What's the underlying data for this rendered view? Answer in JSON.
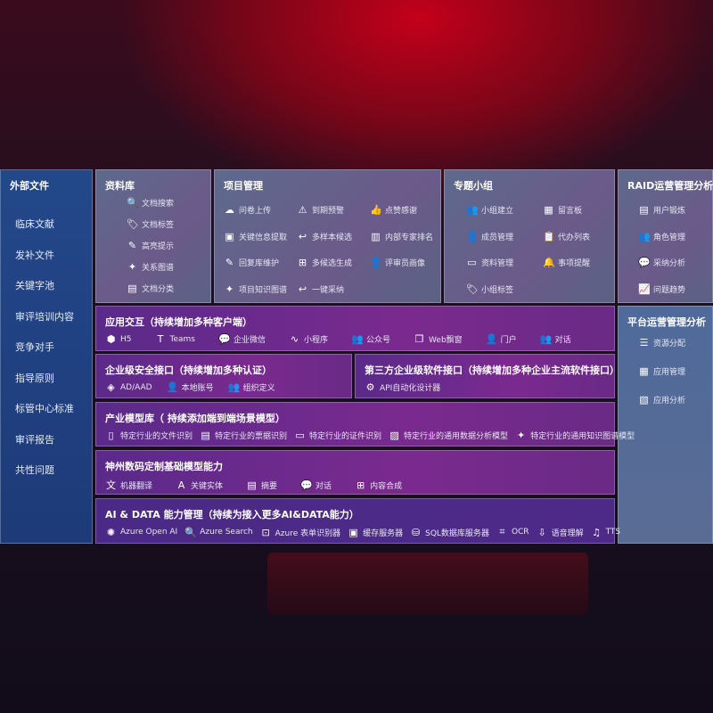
{
  "external": {
    "title": "外部文件",
    "items": [
      "临床文献",
      "发补文件",
      "关键字池",
      "审评培训内容",
      "竞争对手",
      "指导原则",
      "标管中心标准",
      "审评报告",
      "共性问题"
    ]
  },
  "library": {
    "title": "资料库",
    "items": [
      {
        "icon": "document-search-icon",
        "g": "🔍",
        "label": "文档搜索"
      },
      {
        "icon": "tag-icon",
        "g": "🏷",
        "label": "文档标签"
      },
      {
        "icon": "pen-icon",
        "g": "✎",
        "label": "高亮提示"
      },
      {
        "icon": "graph-icon",
        "g": "✦",
        "label": "关系图谱"
      },
      {
        "icon": "document-icon",
        "g": "▤",
        "label": "文档分类"
      }
    ]
  },
  "project": {
    "title": "项目管理",
    "items": [
      {
        "icon": "cloud-upload-icon",
        "g": "☁",
        "label": "问卷上传"
      },
      {
        "icon": "alarm-icon",
        "g": "⚠",
        "label": "到期预警"
      },
      {
        "icon": "thumbs-up-icon",
        "g": "👍",
        "label": "点赞感谢"
      },
      {
        "icon": "window-icon",
        "g": "▣",
        "label": "关键信息提取"
      },
      {
        "icon": "reply-icon",
        "g": "↩",
        "label": "多样本候选"
      },
      {
        "icon": "ranking-icon",
        "g": "▥",
        "label": "内部专家排名"
      },
      {
        "icon": "edit-icon",
        "g": "✎",
        "label": "回复库维护"
      },
      {
        "icon": "puzzle-icon",
        "g": "⊞",
        "label": "多候选生成"
      },
      {
        "icon": "user-icon",
        "g": "👤",
        "label": "评审员画像"
      },
      {
        "icon": "graph-icon",
        "g": "✦",
        "label": "项目知识图谱"
      },
      {
        "icon": "reply-icon",
        "g": "↩",
        "label": "一键采纳"
      }
    ]
  },
  "group": {
    "title": "专题小组",
    "items": [
      {
        "icon": "users-icon",
        "g": "👥",
        "label": "小组建立"
      },
      {
        "icon": "bbs-icon",
        "g": "▦",
        "label": "留言板"
      },
      {
        "icon": "user-add-icon",
        "g": "👤",
        "label": "成员管理"
      },
      {
        "icon": "clipboard-icon",
        "g": "📋",
        "label": "代办列表"
      },
      {
        "icon": "folder-icon",
        "g": "▭",
        "label": "资料管理"
      },
      {
        "icon": "bell-icon",
        "g": "🔔",
        "label": "事项提醒"
      },
      {
        "icon": "tag-icon",
        "g": "🏷",
        "label": "小组标签"
      }
    ]
  },
  "raid": {
    "title": "RAID运营管理分析",
    "items": [
      {
        "icon": "id-card-icon",
        "g": "▤",
        "label": "用户锻炼"
      },
      {
        "icon": "users-icon",
        "g": "👥",
        "label": "角色管理"
      },
      {
        "icon": "qa-icon",
        "g": "💬",
        "label": "采纳分析"
      },
      {
        "icon": "trend-icon",
        "g": "📈",
        "label": "问题趋势"
      }
    ]
  },
  "platform": {
    "title": "平台运营管理分析",
    "items": [
      {
        "icon": "list-icon",
        "g": "☰",
        "label": "资源分配"
      },
      {
        "icon": "apps-icon",
        "g": "▦",
        "label": "应用管理"
      },
      {
        "icon": "chart-icon",
        "g": "▧",
        "label": "应用分析"
      }
    ]
  },
  "interaction": {
    "title": "应用交互（持续增加多种客户端）",
    "items": [
      {
        "icon": "html5-icon",
        "g": "⬢",
        "label": "H5"
      },
      {
        "icon": "teams-icon",
        "g": "T",
        "label": "Teams"
      },
      {
        "icon": "wechat-icon",
        "g": "💬",
        "label": "企业微信"
      },
      {
        "icon": "mini-program-icon",
        "g": "∿",
        "label": "小程序"
      },
      {
        "icon": "users-icon",
        "g": "👥",
        "label": "公众号"
      },
      {
        "icon": "window-icon",
        "g": "❐",
        "label": "Web飘窗"
      },
      {
        "icon": "portal-icon",
        "g": "👤",
        "label": "门户"
      },
      {
        "icon": "chat-icon",
        "g": "👥",
        "label": "对话"
      }
    ]
  },
  "security": {
    "title": "企业级安全接口（持续增加多种认证）",
    "items": [
      {
        "icon": "diamond-icon",
        "g": "◈",
        "label": "AD/AAD"
      },
      {
        "icon": "user-icon",
        "g": "👤",
        "label": "本地账号"
      },
      {
        "icon": "org-icon",
        "g": "👥",
        "label": "组织定义"
      }
    ]
  },
  "thirdparty": {
    "title": "第三方企业级软件接口（持续增加多种企业主流软件接口）",
    "items": [
      {
        "icon": "gear-icon",
        "g": "⚙",
        "label": "API自动化设计器"
      }
    ]
  },
  "industry": {
    "title": "产业模型库（ 持续添加端到端场景模型）",
    "items": [
      {
        "icon": "file-icon",
        "g": "▯",
        "label": "特定行业的文件识别"
      },
      {
        "icon": "receipt-icon",
        "g": "▤",
        "label": "特定行业的票据识别"
      },
      {
        "icon": "id-card-icon",
        "g": "▭",
        "label": "特定行业的证件识别"
      },
      {
        "icon": "image-icon",
        "g": "▨",
        "label": "特定行业的通用数据分析模型"
      },
      {
        "icon": "graph-icon",
        "g": "✦",
        "label": "特定行业的通用知识图谱模型"
      }
    ]
  },
  "foundation": {
    "title": "神州数码定制基础模型能力",
    "items": [
      {
        "icon": "translate-icon",
        "g": "文",
        "label": "机器翻译"
      },
      {
        "icon": "entity-icon",
        "g": "A",
        "label": "关键实体"
      },
      {
        "icon": "summary-icon",
        "g": "▤",
        "label": "摘要"
      },
      {
        "icon": "chat-icon",
        "g": "💬",
        "label": "对话"
      },
      {
        "icon": "compose-icon",
        "g": "⊞",
        "label": "内容合成"
      }
    ]
  },
  "aidata": {
    "title": "AI & DATA 能力管理（持续为接入更多AI&DATA能力）",
    "items": [
      {
        "icon": "openai-icon",
        "g": "✺",
        "label": "Azure Open AI"
      },
      {
        "icon": "search-icon",
        "g": "🔍",
        "label": "Azure Search"
      },
      {
        "icon": "form-icon",
        "g": "⊡",
        "label": "Azure 表单识别器"
      },
      {
        "icon": "cache-icon",
        "g": "▣",
        "label": "缓存服务器"
      },
      {
        "icon": "database-icon",
        "g": "⛁",
        "label": "SQL数据库服务器"
      },
      {
        "icon": "ocr-icon",
        "g": "⌗",
        "label": "OCR"
      },
      {
        "icon": "speech-icon",
        "g": "⇩",
        "label": "语音理解"
      },
      {
        "icon": "tts-icon",
        "g": "♫",
        "label": "TTS"
      }
    ]
  }
}
